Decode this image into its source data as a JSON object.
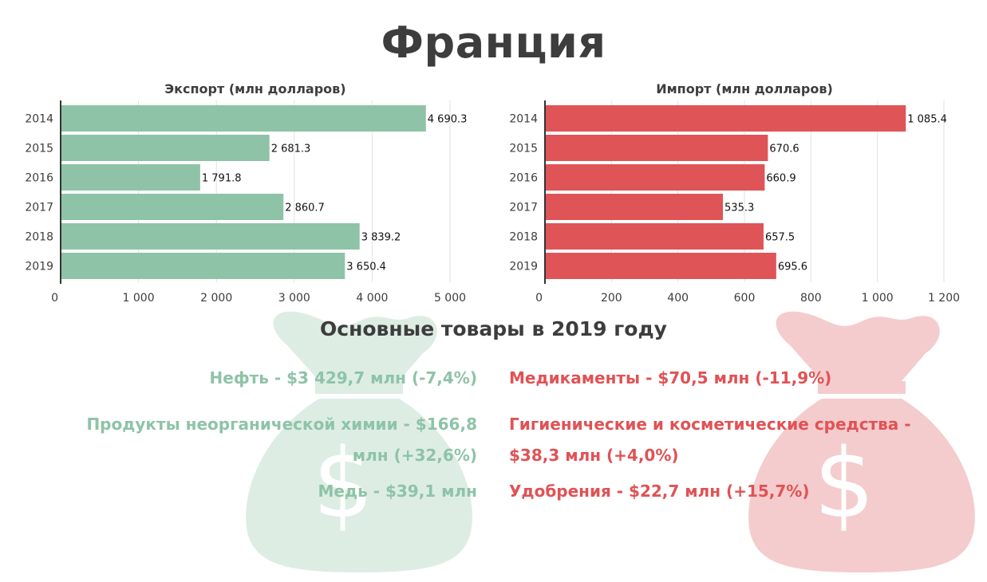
{
  "title": "Франция",
  "subtitle": "Основные товары в 2019 году",
  "colors": {
    "export": "#8ec3a7",
    "import": "#df5457",
    "export_bag": "#ddede4",
    "import_bag": "#f4cccd",
    "text": "#3d3d3d"
  },
  "chart_data": [
    {
      "type": "bar",
      "orientation": "horizontal",
      "title": "Экспорт (млн долларов)",
      "categories": [
        "2014",
        "2015",
        "2016",
        "2017",
        "2018",
        "2019"
      ],
      "values": [
        4690.3,
        2681.3,
        1791.8,
        2860.7,
        3839.2,
        3650.4
      ],
      "value_labels": [
        "4 690.3",
        "2 681.3",
        "1 791.8",
        "2 860.7",
        "3 839.2",
        "3 650.4"
      ],
      "xlim": [
        0,
        5000
      ],
      "xticks": [
        0,
        1000,
        2000,
        3000,
        4000,
        5000
      ],
      "xtick_labels": [
        "0",
        "1 000",
        "2 000",
        "3 000",
        "4 000",
        "5 000"
      ],
      "grid": true
    },
    {
      "type": "bar",
      "orientation": "horizontal",
      "title": "Импорт (млн долларов)",
      "categories": [
        "2014",
        "2015",
        "2016",
        "2017",
        "2018",
        "2019"
      ],
      "values": [
        1085.4,
        670.6,
        660.9,
        535.3,
        657.5,
        695.6
      ],
      "value_labels": [
        "1 085.4",
        "670.6",
        "660.9",
        "535.3",
        "657.5",
        "695.6"
      ],
      "xlim": [
        0,
        1200
      ],
      "xticks": [
        0,
        200,
        400,
        600,
        800,
        1000,
        1200
      ],
      "xtick_labels": [
        "0",
        "200",
        "400",
        "600",
        "800",
        "1 000",
        "1 200"
      ],
      "grid": true
    }
  ],
  "goods": {
    "export": [
      {
        "text": "Нефть - $3 429,7 млн (-7,4%)"
      },
      {
        "text": "Продукты неорганической химии - $166,8 млн (+32,6%)"
      },
      {
        "text": "Медь - $39,1 млн"
      }
    ],
    "import": [
      {
        "text": "Медикаменты - $70,5 млн (-11,9%)"
      },
      {
        "text": "Гигиенические и косметические средства - $38,3 млн (+4,0%)"
      },
      {
        "text": "Удобрения - $22,7 млн (+15,7%)"
      }
    ]
  },
  "icons": [
    "money-bag-icon",
    "dollar-sign-icon"
  ]
}
